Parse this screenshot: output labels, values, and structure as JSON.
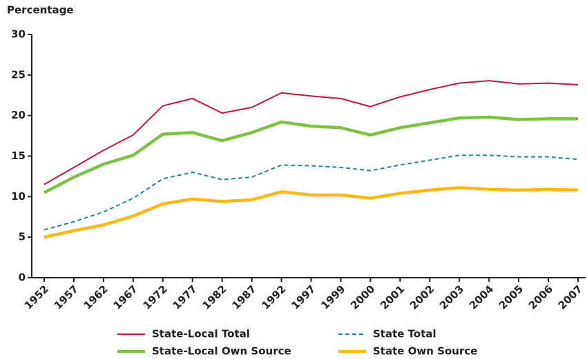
{
  "chart_data": {
    "type": "line",
    "y_label": "Percentage",
    "categories": [
      "1952",
      "1957",
      "1962",
      "1967",
      "1972",
      "1977",
      "1982",
      "1987",
      "1992",
      "1997",
      "1999",
      "2000",
      "2001",
      "2002",
      "2003",
      "2004",
      "2005",
      "2006",
      "2007"
    ],
    "series": [
      {
        "name": "State-Local Total",
        "color": "#c0143c",
        "width": 2,
        "dashed": false,
        "values": [
          11.5,
          13.6,
          15.7,
          17.6,
          21.2,
          22.1,
          20.3,
          21.0,
          22.8,
          22.4,
          22.1,
          21.1,
          22.3,
          23.2,
          24.0,
          24.3,
          23.9,
          24.0,
          23.8
        ]
      },
      {
        "name": "State Total",
        "color": "#1a8a8f",
        "width": 2,
        "dashed": true,
        "values": [
          5.9,
          6.9,
          8.1,
          9.8,
          12.2,
          13.0,
          12.1,
          12.4,
          13.9,
          13.8,
          13.6,
          13.2,
          13.9,
          14.5,
          15.1,
          15.1,
          14.9,
          14.9,
          14.6
        ]
      },
      {
        "name": "State-Local Own Source",
        "color": "#7dc242",
        "width": 4.5,
        "dashed": false,
        "values": [
          10.5,
          12.4,
          14.0,
          15.1,
          17.7,
          17.9,
          16.9,
          17.9,
          19.2,
          18.7,
          18.5,
          17.6,
          18.5,
          19.1,
          19.7,
          19.8,
          19.5,
          19.6,
          19.6
        ]
      },
      {
        "name": "State Own Source",
        "color": "#fdb813",
        "width": 4.5,
        "dashed": false,
        "values": [
          5.0,
          5.8,
          6.5,
          7.6,
          9.1,
          9.7,
          9.4,
          9.6,
          10.6,
          10.2,
          10.2,
          9.8,
          10.4,
          10.8,
          11.1,
          10.9,
          10.8,
          10.9,
          10.8
        ]
      }
    ],
    "ylim": [
      0,
      30
    ],
    "yticks": [
      0,
      5,
      10,
      15,
      20,
      25,
      30
    ],
    "grid": false,
    "legend": "bottom"
  }
}
